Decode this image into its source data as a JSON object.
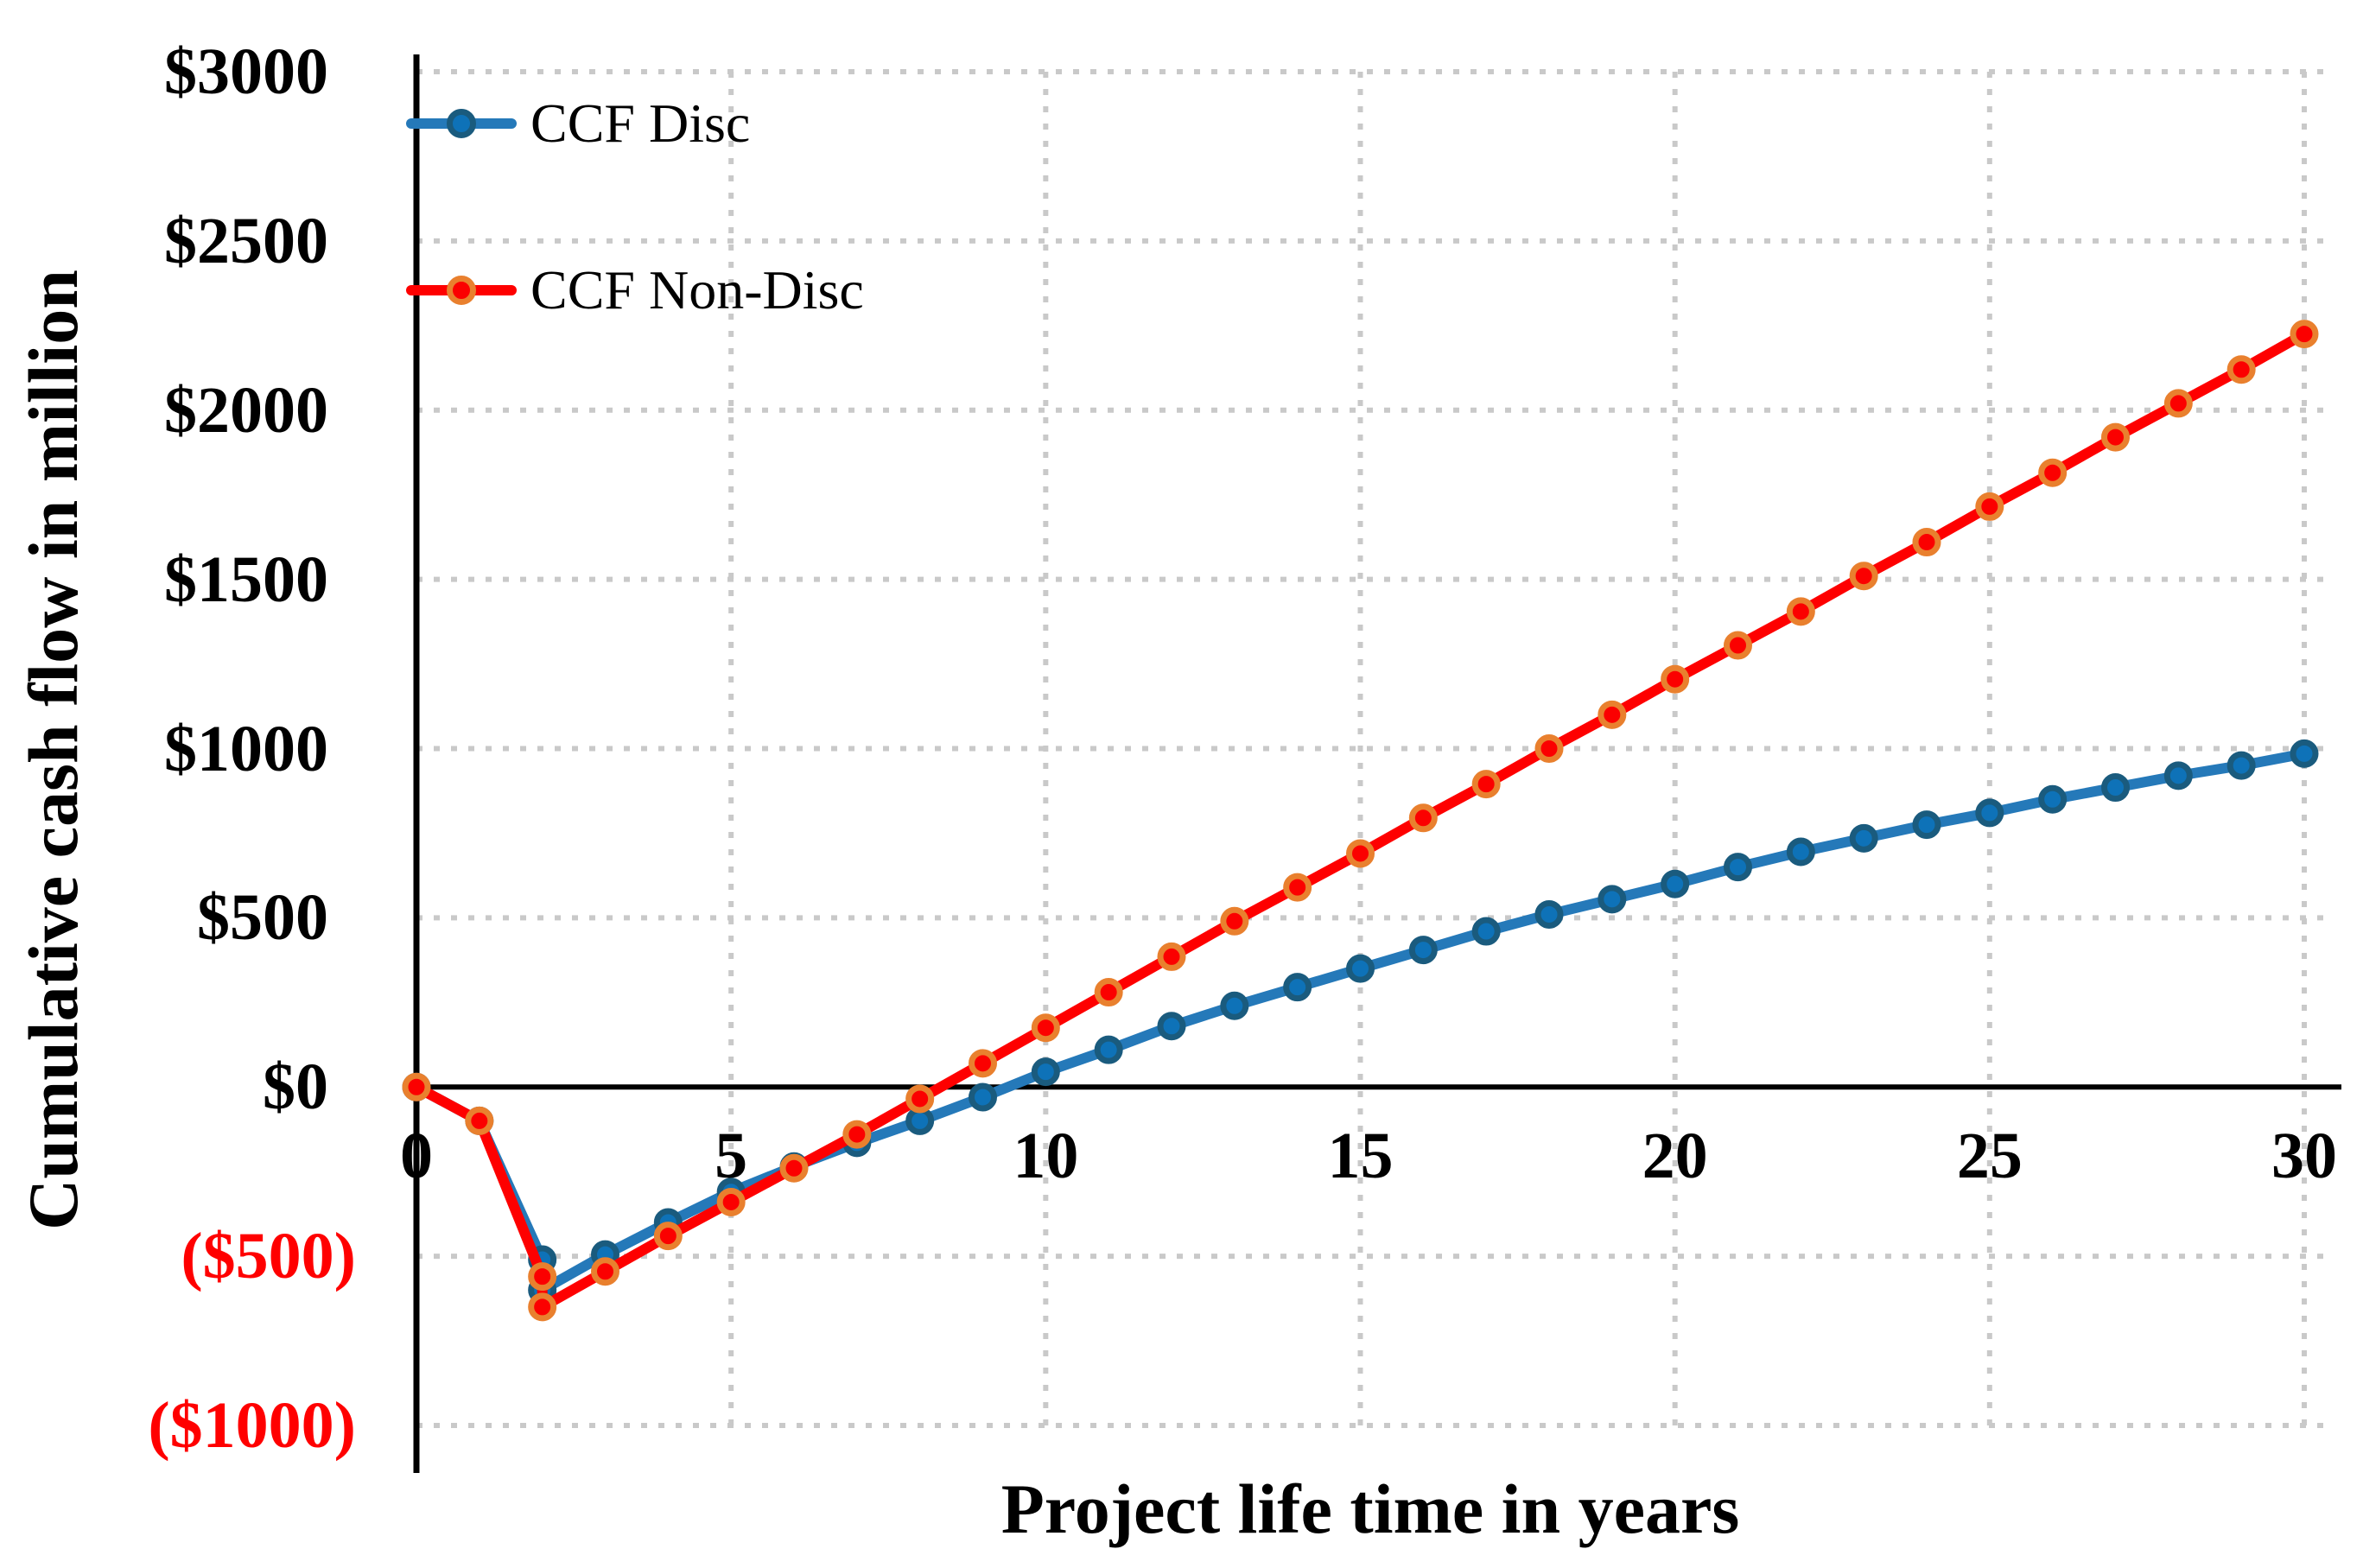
{
  "chart_data": {
    "type": "line",
    "title": "",
    "xlabel": "Project life time in years",
    "ylabel": "Cumulative cash flow in million",
    "xlim": [
      0,
      30
    ],
    "ylim": [
      -1000,
      3000
    ],
    "grid": "dotted",
    "legend_position": "top-left-inside",
    "x": [
      0,
      1,
      2,
      2,
      3,
      4,
      5,
      6,
      7,
      8,
      9,
      10,
      11,
      12,
      13,
      14,
      15,
      16,
      17,
      18,
      19,
      20,
      21,
      22,
      23,
      24,
      25,
      26,
      27,
      28,
      29,
      30
    ],
    "series": [
      {
        "name": "CCF Disc",
        "line_color": "#2579B9",
        "marker_fill": "#0E72B8",
        "marker_ring": "#1A5B7E",
        "values": [
          0,
          -100,
          -510,
          -600,
          -495,
          -400,
          -310,
          -235,
          -165,
          -100,
          -30,
          45,
          110,
          180,
          240,
          295,
          350,
          405,
          460,
          510,
          555,
          600,
          650,
          695,
          735,
          775,
          810,
          850,
          885,
          920,
          950,
          985
        ]
      },
      {
        "name": "CCF Non-Disc",
        "line_color": "#FE0000",
        "marker_fill": "#FB0000",
        "marker_ring": "#E9802E",
        "values": [
          0,
          -100,
          -560,
          -650,
          -545,
          -440,
          -340,
          -240,
          -140,
          -35,
          70,
          175,
          280,
          385,
          490,
          590,
          690,
          795,
          895,
          1000,
          1100,
          1205,
          1305,
          1405,
          1510,
          1610,
          1715,
          1815,
          1920,
          2020,
          2120,
          2225
        ]
      }
    ],
    "xticks": [
      {
        "label": "0",
        "value": 0
      },
      {
        "label": "5",
        "value": 5
      },
      {
        "label": "10",
        "value": 10
      },
      {
        "label": "15",
        "value": 15
      },
      {
        "label": "20",
        "value": 20
      },
      {
        "label": "25",
        "value": 25
      },
      {
        "label": "30",
        "value": 30
      }
    ],
    "yticks": [
      {
        "label": "$3000",
        "value": 3000,
        "negative": false
      },
      {
        "label": "$2500",
        "value": 2500,
        "negative": false
      },
      {
        "label": "$2000",
        "value": 2000,
        "negative": false
      },
      {
        "label": "$1500",
        "value": 1500,
        "negative": false
      },
      {
        "label": "$1000",
        "value": 1000,
        "negative": false
      },
      {
        "label": "$500",
        "value": 500,
        "negative": false
      },
      {
        "label": "$0",
        "value": 0,
        "negative": false
      },
      {
        "label": "($500)",
        "value": -500,
        "negative": true
      },
      {
        "label": "($1000)",
        "value": -1000,
        "negative": true
      }
    ]
  },
  "colors": {
    "grid": "#C9C9C9",
    "axis": "#000000",
    "negative_tick": "#FF0000",
    "background": "#FFFFFF"
  }
}
